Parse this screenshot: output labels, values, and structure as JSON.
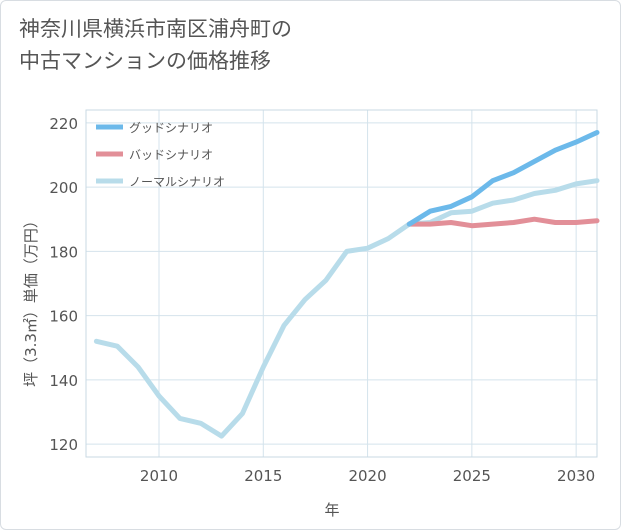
{
  "title": {
    "line1": "神奈川県横浜市南区浦舟町の",
    "line2": "中古マンションの価格推移"
  },
  "chart_data": {
    "type": "line",
    "xlabel": "年",
    "ylabel": "坪（3.3㎡）単価（万円）",
    "xlim": [
      2006.5,
      2031
    ],
    "ylim": [
      116,
      224
    ],
    "x_ticks": [
      2010,
      2015,
      2020,
      2025,
      2030
    ],
    "y_ticks": [
      120,
      140,
      160,
      180,
      200,
      220
    ],
    "grid": true,
    "legend_position": "top-left",
    "series": [
      {
        "name": "グッドシナリオ",
        "color": "#6cb9ea",
        "x": [
          2022,
          2023,
          2024,
          2025,
          2026,
          2027,
          2028,
          2029,
          2030,
          2031
        ],
        "values": [
          188.5,
          192.5,
          194,
          197,
          202,
          204.5,
          208,
          211.5,
          214,
          217
        ]
      },
      {
        "name": "バッドシナリオ",
        "color": "#e28f98",
        "x": [
          2022,
          2023,
          2024,
          2025,
          2026,
          2027,
          2028,
          2029,
          2030,
          2031
        ],
        "values": [
          188.5,
          188.5,
          189,
          188,
          188.5,
          189,
          190,
          189,
          189,
          189.5
        ]
      },
      {
        "name": "ノーマルシナリオ",
        "color": "#b8dcea",
        "x": [
          2007,
          2008,
          2009,
          2010,
          2011,
          2012,
          2013,
          2014,
          2015,
          2016,
          2017,
          2018,
          2019,
          2020,
          2021,
          2022,
          2023,
          2024,
          2025,
          2026,
          2027,
          2028,
          2029,
          2030,
          2031
        ],
        "values": [
          152,
          150.5,
          144,
          135,
          128,
          126.5,
          122.5,
          129.5,
          144,
          157,
          165,
          171,
          180,
          181,
          184,
          188.5,
          189,
          192,
          192.5,
          195,
          196,
          198,
          199,
          201,
          202
        ]
      }
    ]
  }
}
